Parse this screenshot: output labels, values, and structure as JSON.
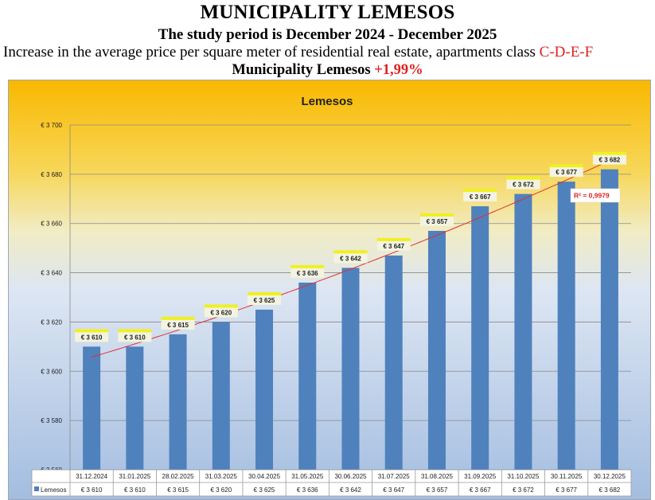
{
  "header": {
    "title": "MUNICIPALITY LEMESOS",
    "period": "The study period is December 2024 - December 2025",
    "description": "Increase in the average price per square meter of residential real estate, apartments class",
    "classes": "C-D-E-F",
    "municipality_label": "Municipality  Lemesos",
    "change": "+1,99%"
  },
  "colors": {
    "bar": "#4f81bd",
    "trend": "#e03030",
    "label_highlight": "#f0f020",
    "accent_red": "#e02020"
  },
  "chart_data": {
    "type": "bar",
    "title": "Lemesos",
    "series_name": "Lemesos",
    "categories": [
      "31.12.2024",
      "31.01.2025",
      "28.02.2025",
      "31.03.2025",
      "30.04.2025",
      "31.05.2025",
      "30.06.2025",
      "31.07.2025",
      "31.08.2025",
      "31.09.2025",
      "31.10.2025",
      "30.11.2025",
      "30.12.2025"
    ],
    "values": [
      3610,
      3610,
      3615,
      3620,
      3625,
      3636,
      3642,
      3647,
      3657,
      3667,
      3672,
      3677,
      3682
    ],
    "value_labels": [
      "€ 3 610",
      "€ 3 610",
      "€ 3 615",
      "€ 3 620",
      "€ 3 625",
      "€ 3 636",
      "€ 3 642",
      "€ 3 647",
      "€ 3 657",
      "€ 3 667",
      "€ 3 672",
      "€ 3 677",
      "€ 3 682"
    ],
    "ylim": [
      3560,
      3700
    ],
    "yticks": [
      3560,
      3580,
      3600,
      3620,
      3640,
      3660,
      3680,
      3700
    ],
    "ytick_labels": [
      "€ 3 560",
      "€ 3 580",
      "€ 3 600",
      "€ 3 620",
      "€ 3 640",
      "€ 3 660",
      "€ 3 680",
      "€ 3 700"
    ],
    "trendline": {
      "type": "polynomial",
      "r2_label": "R² = 0,9979"
    },
    "grid": true,
    "data_table": true
  }
}
